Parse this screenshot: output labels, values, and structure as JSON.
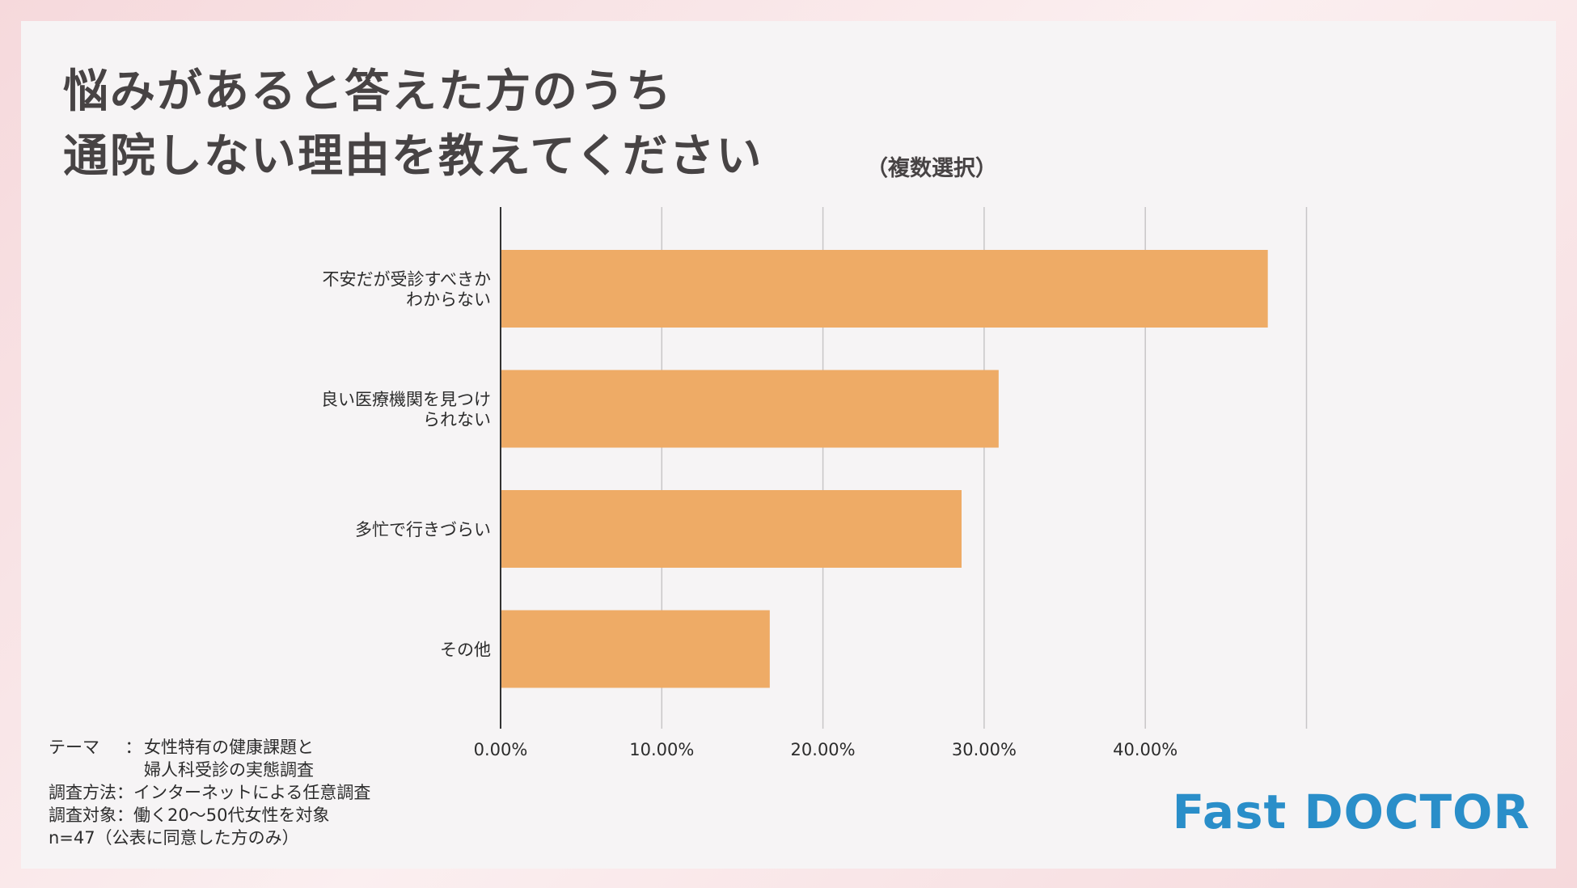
{
  "chart_data": {
    "type": "bar",
    "orientation": "horizontal",
    "title_line1": "悩みがあると答えた方のうち",
    "title_line2": "通院しない理由を教えてください",
    "title_note": "（複数選択）",
    "categories": [
      [
        "不安だが受診すべきか",
        "わからない"
      ],
      [
        "良い医療機関を見つけ",
        "られない"
      ],
      [
        "多忙で行きづらい"
      ],
      [
        "その他"
      ]
    ],
    "values": [
      47.6,
      30.9,
      28.6,
      16.7
    ],
    "xlim": [
      0,
      50
    ],
    "xticks": [
      0,
      10,
      20,
      30,
      40
    ],
    "tick_labels": [
      "0.00%",
      "10.00%",
      "20.00%",
      "30.00%",
      "40.00%"
    ],
    "grid": true,
    "bar_color": "#eeab66"
  },
  "footer": {
    "theme_label": "テーマ",
    "theme_value_line1": "女性特有の健康課題と",
    "theme_value_line2": "婦人科受診の実態調査",
    "method_label": "調査方法",
    "method_value": "インターネットによる任意調査",
    "target_label": "調査対象",
    "target_value": "働く20〜50代女性を対象",
    "sample": "n=47（公表に同意した方のみ）",
    "sep": "："
  },
  "logo": "Fast DOCTOR",
  "colors": {
    "title": "#474344",
    "logo": "#2a8ec9",
    "grid": "#c8c6c7",
    "axis": "#333333"
  }
}
